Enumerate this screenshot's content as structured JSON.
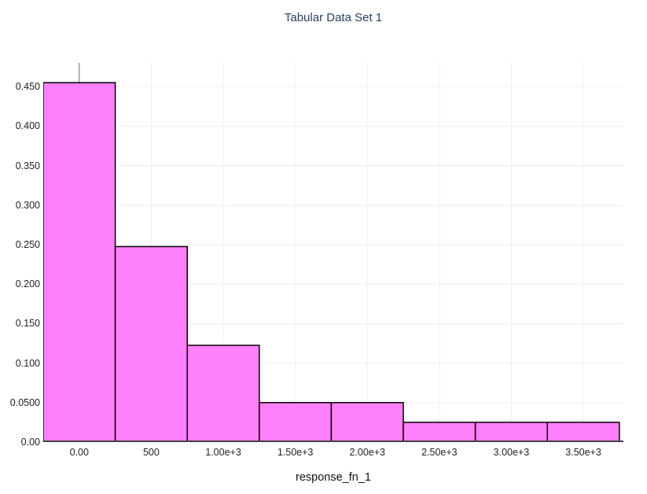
{
  "chart_data": {
    "type": "bar",
    "subtype": "histogram",
    "title": "Tabular Data Set 1",
    "xlabel": "response_fn_1",
    "ylabel": "",
    "bin_centers": [
      0,
      500,
      1000,
      1500,
      2000,
      2500,
      3000,
      3500
    ],
    "bin_width": 500,
    "values": [
      0.455,
      0.2475,
      0.1225,
      0.05,
      0.05,
      0.025,
      0.025,
      0.025
    ],
    "x_ticks": {
      "values": [
        0,
        500,
        1000,
        1500,
        2000,
        2500,
        3000,
        3500
      ],
      "labels": [
        "0.00",
        "500",
        "1.00e+3",
        "1.50e+3",
        "2.00e+3",
        "2.50e+3",
        "3.00e+3",
        "3.50e+3"
      ]
    },
    "y_ticks": {
      "values": [
        0,
        0.05,
        0.1,
        0.15,
        0.2,
        0.25,
        0.3,
        0.35,
        0.4,
        0.45
      ],
      "labels": [
        "0.00",
        "0.0500",
        "0.100",
        "0.150",
        "0.200",
        "0.250",
        "0.300",
        "0.350",
        "0.400",
        "0.450"
      ]
    },
    "xlim": [
      -250,
      3778
    ],
    "ylim": [
      0,
      0.48
    ],
    "grid": true,
    "zeroline": true,
    "legend_position": "none",
    "colors": {
      "bar_fill": "#ff80fb",
      "bar_border": "#000000",
      "gridline": "#ededed",
      "zeroline": "#999999",
      "axis_line": "#444444",
      "title_text": "#2a3f5f",
      "tick_text": "#222222",
      "axis_title_text": "#111111",
      "background": "#ffffff"
    }
  }
}
